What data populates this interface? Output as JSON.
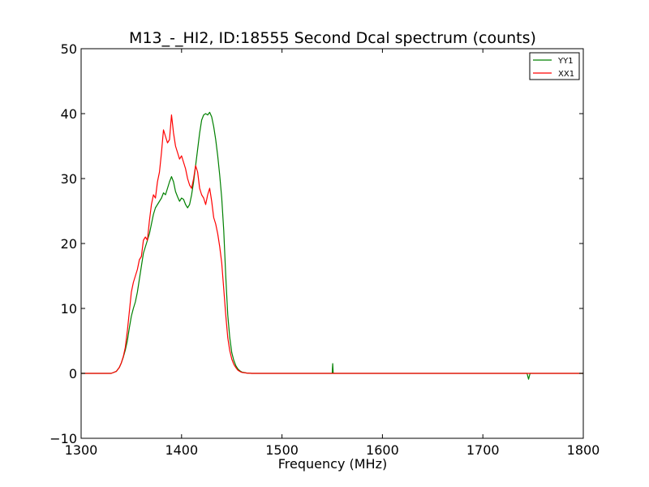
{
  "chart_data": {
    "type": "line",
    "title": "M13_-_HI2, ID:18555 Second Dcal spectrum (counts)",
    "xlabel": "Frequency (MHz)",
    "ylabel": "",
    "xlim": [
      1300,
      1800
    ],
    "ylim": [
      -10,
      50
    ],
    "xticks": [
      1300,
      1400,
      1500,
      1600,
      1700,
      1800
    ],
    "yticks": [
      -10,
      0,
      10,
      20,
      30,
      40,
      50
    ],
    "xtick_labels": [
      "1300",
      "1400",
      "1500",
      "1600",
      "1700",
      "1800"
    ],
    "ytick_labels": [
      "−10",
      "0",
      "10",
      "20",
      "30",
      "40",
      "50"
    ],
    "grid": false,
    "legend_position": "top-right",
    "series": [
      {
        "name": "YY1",
        "color": "#008000",
        "points": [
          [
            1300,
            0
          ],
          [
            1330,
            0
          ],
          [
            1335,
            0.3
          ],
          [
            1338,
            0.9
          ],
          [
            1340,
            1.6
          ],
          [
            1342,
            2.5
          ],
          [
            1344,
            3.6
          ],
          [
            1346,
            5.0
          ],
          [
            1348,
            7.0
          ],
          [
            1350,
            8.8
          ],
          [
            1352,
            10.0
          ],
          [
            1354,
            11.0
          ],
          [
            1356,
            12.5
          ],
          [
            1358,
            14.5
          ],
          [
            1360,
            16.5
          ],
          [
            1362,
            18.5
          ],
          [
            1364,
            19.5
          ],
          [
            1366,
            20.5
          ],
          [
            1368,
            21.5
          ],
          [
            1370,
            23.0
          ],
          [
            1372,
            24.5
          ],
          [
            1374,
            25.5
          ],
          [
            1376,
            26.0
          ],
          [
            1378,
            26.5
          ],
          [
            1380,
            27.0
          ],
          [
            1382,
            27.8
          ],
          [
            1384,
            27.5
          ],
          [
            1386,
            28.5
          ],
          [
            1388,
            29.5
          ],
          [
            1390,
            30.3
          ],
          [
            1392,
            29.5
          ],
          [
            1394,
            28.0
          ],
          [
            1396,
            27.2
          ],
          [
            1398,
            26.5
          ],
          [
            1400,
            27.0
          ],
          [
            1402,
            26.8
          ],
          [
            1404,
            26.0
          ],
          [
            1406,
            25.5
          ],
          [
            1408,
            26.0
          ],
          [
            1410,
            27.5
          ],
          [
            1412,
            29.5
          ],
          [
            1414,
            32.0
          ],
          [
            1416,
            34.5
          ],
          [
            1418,
            37.0
          ],
          [
            1420,
            39.0
          ],
          [
            1422,
            39.8
          ],
          [
            1424,
            40.0
          ],
          [
            1426,
            39.8
          ],
          [
            1428,
            40.2
          ],
          [
            1430,
            39.5
          ],
          [
            1432,
            38.0
          ],
          [
            1434,
            36.0
          ],
          [
            1436,
            33.5
          ],
          [
            1438,
            30.5
          ],
          [
            1440,
            27.0
          ],
          [
            1442,
            22.0
          ],
          [
            1444,
            15.0
          ],
          [
            1446,
            9.0
          ],
          [
            1448,
            5.5
          ],
          [
            1450,
            3.2
          ],
          [
            1452,
            2.0
          ],
          [
            1454,
            1.2
          ],
          [
            1456,
            0.7
          ],
          [
            1458,
            0.4
          ],
          [
            1460,
            0.2
          ],
          [
            1465,
            0.05
          ],
          [
            1470,
            0
          ],
          [
            1550,
            0
          ],
          [
            1550.5,
            1.5
          ],
          [
            1551,
            0
          ],
          [
            1744,
            0
          ],
          [
            1745.5,
            -0.9
          ],
          [
            1747,
            0
          ],
          [
            1800,
            0
          ]
        ]
      },
      {
        "name": "XX1",
        "color": "#ff0000",
        "points": [
          [
            1300,
            0
          ],
          [
            1330,
            0
          ],
          [
            1335,
            0.3
          ],
          [
            1338,
            0.9
          ],
          [
            1340,
            1.6
          ],
          [
            1342,
            2.6
          ],
          [
            1344,
            4.0
          ],
          [
            1346,
            6.5
          ],
          [
            1348,
            9.5
          ],
          [
            1350,
            12.5
          ],
          [
            1352,
            14.0
          ],
          [
            1354,
            15.0
          ],
          [
            1356,
            16.0
          ],
          [
            1358,
            17.5
          ],
          [
            1360,
            18.0
          ],
          [
            1362,
            20.5
          ],
          [
            1364,
            21.0
          ],
          [
            1366,
            20.5
          ],
          [
            1368,
            23.5
          ],
          [
            1370,
            26.0
          ],
          [
            1372,
            27.5
          ],
          [
            1374,
            27.0
          ],
          [
            1376,
            29.5
          ],
          [
            1378,
            31.0
          ],
          [
            1380,
            34.0
          ],
          [
            1382,
            37.5
          ],
          [
            1384,
            36.5
          ],
          [
            1386,
            35.5
          ],
          [
            1388,
            36.0
          ],
          [
            1390,
            39.8
          ],
          [
            1392,
            37.0
          ],
          [
            1394,
            35.0
          ],
          [
            1396,
            34.0
          ],
          [
            1398,
            33.0
          ],
          [
            1400,
            33.5
          ],
          [
            1402,
            32.5
          ],
          [
            1404,
            31.5
          ],
          [
            1406,
            30.0
          ],
          [
            1408,
            29.0
          ],
          [
            1410,
            28.5
          ],
          [
            1412,
            30.0
          ],
          [
            1414,
            32.0
          ],
          [
            1416,
            31.0
          ],
          [
            1418,
            28.5
          ],
          [
            1420,
            27.5
          ],
          [
            1422,
            27.0
          ],
          [
            1424,
            26.0
          ],
          [
            1426,
            27.5
          ],
          [
            1428,
            28.5
          ],
          [
            1430,
            26.5
          ],
          [
            1432,
            24.0
          ],
          [
            1434,
            23.0
          ],
          [
            1436,
            21.5
          ],
          [
            1438,
            19.5
          ],
          [
            1440,
            17.0
          ],
          [
            1442,
            13.0
          ],
          [
            1444,
            9.0
          ],
          [
            1446,
            5.5
          ],
          [
            1448,
            3.5
          ],
          [
            1450,
            2.2
          ],
          [
            1452,
            1.4
          ],
          [
            1454,
            0.9
          ],
          [
            1456,
            0.5
          ],
          [
            1458,
            0.3
          ],
          [
            1460,
            0.15
          ],
          [
            1465,
            0.05
          ],
          [
            1470,
            0
          ],
          [
            1800,
            0
          ]
        ]
      }
    ]
  }
}
